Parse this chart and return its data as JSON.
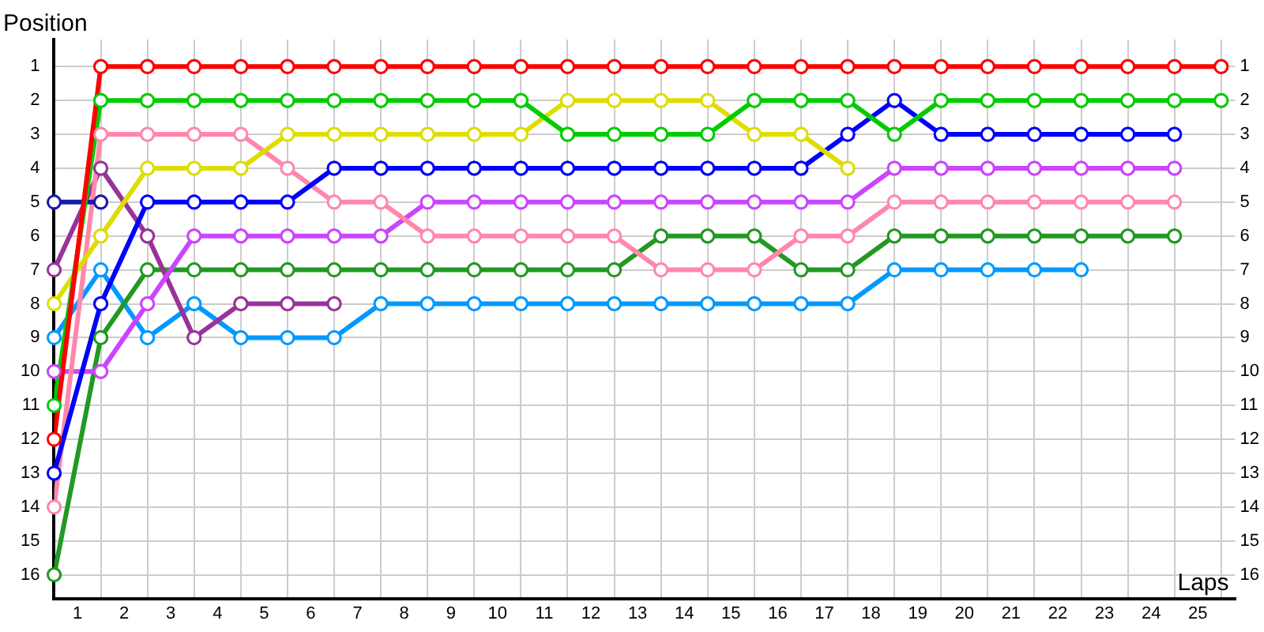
{
  "chart_data": {
    "type": "line",
    "xlabel": "Laps",
    "ylabel": "Position",
    "x": [
      0,
      1,
      2,
      3,
      4,
      5,
      6,
      7,
      8,
      9,
      10,
      11,
      12,
      13,
      14,
      15,
      16,
      17,
      18,
      19,
      20,
      21,
      22,
      23,
      24,
      25
    ],
    "series": [
      {
        "color": "#ff0000",
        "values": [
          12,
          1,
          1,
          1,
          1,
          1,
          1,
          1,
          1,
          1,
          1,
          1,
          1,
          1,
          1,
          1,
          1,
          1,
          1,
          1,
          1,
          1,
          1,
          1,
          1,
          1
        ]
      },
      {
        "color": "#00cc00",
        "values": [
          11,
          2,
          2,
          2,
          2,
          2,
          2,
          2,
          2,
          2,
          2,
          3,
          3,
          3,
          3,
          2,
          2,
          2,
          3,
          2,
          2,
          2,
          2,
          2,
          2,
          2
        ]
      },
      {
        "color": "#dddd00",
        "values": [
          8,
          6,
          4,
          4,
          4,
          3,
          3,
          3,
          3,
          3,
          3,
          2,
          2,
          2,
          2,
          3,
          3,
          4,
          null,
          null,
          null,
          null,
          null,
          null,
          null,
          null
        ]
      },
      {
        "color": "#0000ff",
        "values": [
          13,
          8,
          5,
          5,
          5,
          5,
          4,
          4,
          4,
          4,
          4,
          4,
          4,
          4,
          4,
          4,
          4,
          3,
          2,
          3,
          3,
          3,
          3,
          3,
          3,
          null
        ]
      },
      {
        "color": "#1a1aa8",
        "values": [
          5,
          5,
          null,
          null,
          null,
          null,
          null,
          null,
          null,
          null,
          null,
          null,
          null,
          null,
          null,
          null,
          null,
          null,
          null,
          null,
          null,
          null,
          null,
          null,
          null,
          null
        ]
      },
      {
        "color": "#ff88aa",
        "values": [
          14,
          3,
          3,
          3,
          3,
          4,
          5,
          5,
          6,
          6,
          6,
          6,
          6,
          7,
          7,
          7,
          6,
          6,
          5,
          5,
          5,
          5,
          5,
          5,
          5,
          null
        ]
      },
      {
        "color": "#cc44ff",
        "values": [
          10,
          10,
          8,
          6,
          6,
          6,
          6,
          6,
          5,
          5,
          5,
          5,
          5,
          5,
          5,
          5,
          5,
          5,
          4,
          4,
          4,
          4,
          4,
          4,
          4,
          null
        ]
      },
      {
        "color": "#993399",
        "values": [
          7,
          4,
          6,
          9,
          8,
          8,
          8,
          null,
          null,
          null,
          null,
          null,
          null,
          null,
          null,
          null,
          null,
          null,
          null,
          null,
          null,
          null,
          null,
          null,
          null,
          null
        ]
      },
      {
        "color": "#229922",
        "values": [
          16,
          9,
          7,
          7,
          7,
          7,
          7,
          7,
          7,
          7,
          7,
          7,
          7,
          6,
          6,
          6,
          7,
          7,
          6,
          6,
          6,
          6,
          6,
          6,
          6,
          null
        ]
      },
      {
        "color": "#0099ff",
        "values": [
          9,
          7,
          9,
          8,
          9,
          9,
          9,
          8,
          8,
          8,
          8,
          8,
          8,
          8,
          8,
          8,
          8,
          8,
          7,
          7,
          7,
          7,
          7,
          null,
          null,
          null
        ]
      }
    ],
    "xlim": [
      0,
      25.3
    ],
    "xticks": [
      {
        "value": 0,
        "label": null
      },
      {
        "value": 0.5,
        "label": "1"
      },
      {
        "value": 1,
        "label": null
      },
      {
        "value": 1.5,
        "label": "2"
      },
      {
        "value": 2,
        "label": null
      },
      {
        "value": 2.5,
        "label": "3"
      },
      {
        "value": 3,
        "label": null
      },
      {
        "value": 3.5,
        "label": "4"
      },
      {
        "value": 4,
        "label": null
      },
      {
        "value": 4.5,
        "label": "5"
      },
      {
        "value": 5,
        "label": null
      },
      {
        "value": 5.5,
        "label": "6"
      },
      {
        "value": 6,
        "label": null
      },
      {
        "value": 6.5,
        "label": "7"
      },
      {
        "value": 7,
        "label": null
      },
      {
        "value": 7.5,
        "label": "8"
      },
      {
        "value": 8,
        "label": null
      },
      {
        "value": 8.5,
        "label": "9"
      },
      {
        "value": 9,
        "label": null
      },
      {
        "value": 9.5,
        "label": "10"
      },
      {
        "value": 10,
        "label": null
      },
      {
        "value": 10.5,
        "label": "11"
      },
      {
        "value": 11,
        "label": null
      },
      {
        "value": 11.5,
        "label": "12"
      },
      {
        "value": 12,
        "label": null
      },
      {
        "value": 12.5,
        "label": "13"
      },
      {
        "value": 13,
        "label": null
      },
      {
        "value": 13.5,
        "label": "14"
      },
      {
        "value": 14,
        "label": null
      },
      {
        "value": 14.5,
        "label": "15"
      },
      {
        "value": 15,
        "label": null
      },
      {
        "value": 15.5,
        "label": "16"
      },
      {
        "value": 16,
        "label": null
      },
      {
        "value": 16.5,
        "label": "17"
      },
      {
        "value": 17,
        "label": null
      },
      {
        "value": 17.5,
        "label": "18"
      },
      {
        "value": 18,
        "label": null
      },
      {
        "value": 18.5,
        "label": "19"
      },
      {
        "value": 19,
        "label": null
      },
      {
        "value": 19.5,
        "label": "20"
      },
      {
        "value": 20,
        "label": null
      },
      {
        "value": 20.5,
        "label": "21"
      },
      {
        "value": 21,
        "label": null
      },
      {
        "value": 21.5,
        "label": "22"
      },
      {
        "value": 22,
        "label": null
      },
      {
        "value": 22.5,
        "label": "23"
      },
      {
        "value": 23,
        "label": null
      },
      {
        "value": 23.5,
        "label": "24"
      },
      {
        "value": 24,
        "label": null
      },
      {
        "value": 24.5,
        "label": "25"
      },
      {
        "value": 25,
        "label": null
      }
    ],
    "ylim": [
      16.7,
      0.2
    ],
    "yticks": [
      1,
      2,
      3,
      4,
      5,
      6,
      7,
      8,
      9,
      10,
      11,
      12,
      13,
      14,
      15,
      16
    ],
    "y2lim": [
      16.7,
      0.2
    ],
    "y2ticks": [
      1,
      2,
      3,
      4,
      5,
      6,
      7,
      8,
      9,
      10,
      11,
      12,
      13,
      14,
      15,
      16
    ],
    "grid": true,
    "legend": false,
    "marker": "circle",
    "line_style": "solid"
  }
}
